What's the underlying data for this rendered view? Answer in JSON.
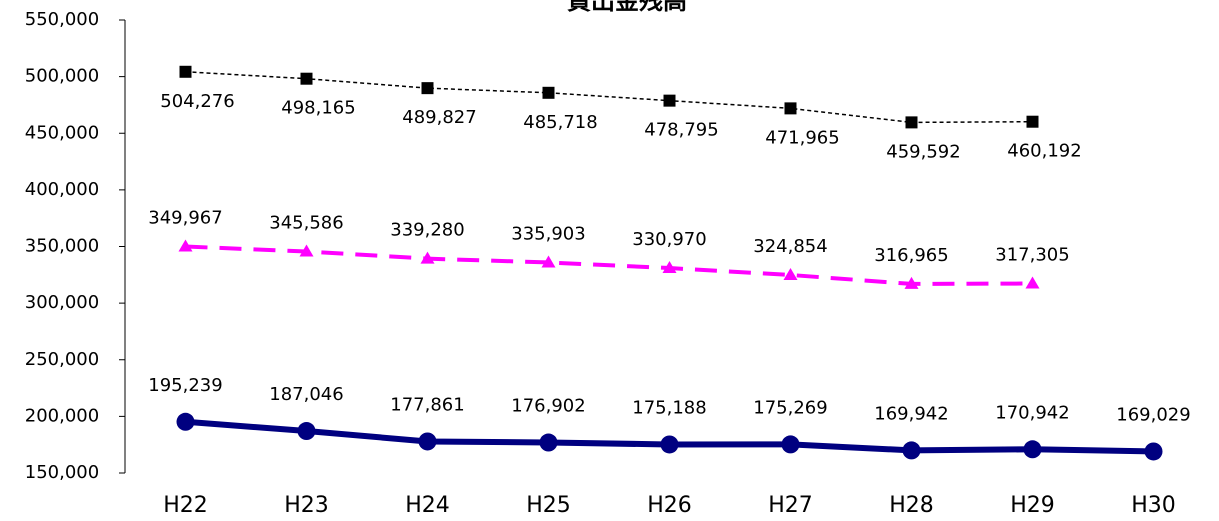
{
  "chart_data": {
    "type": "line",
    "title": "貸出金残高",
    "categories": [
      "H22",
      "H23",
      "H24",
      "H25",
      "H26",
      "H27",
      "H28",
      "H29",
      "H30"
    ],
    "series": [
      {
        "color": "#000000",
        "values": [
          504276,
          498165,
          489827,
          485718,
          478795,
          471965,
          459592,
          460192,
          null
        ],
        "value_labels": [
          "504,276",
          "498,165",
          "489,827",
          "485,718",
          "478,795",
          "471,965",
          "459,592",
          "460,192",
          null
        ]
      },
      {
        "color": "#ff00ff",
        "values": [
          349967,
          345586,
          339280,
          335903,
          330970,
          324854,
          316965,
          317305,
          null
        ],
        "value_labels": [
          "349,967",
          "345,586",
          "339,280",
          "335,903",
          "330,970",
          "324,854",
          "316,965",
          "317,305",
          null
        ]
      },
      {
        "color": "#000080",
        "values": [
          195239,
          187046,
          177861,
          176902,
          175188,
          175269,
          169942,
          170942,
          169029
        ],
        "value_labels": [
          "195,239",
          "187,046",
          "177,861",
          "176,902",
          "175,188",
          "175,269",
          "169,942",
          "170,942",
          "169,029"
        ]
      }
    ],
    "ylim": [
      150000,
      550000
    ],
    "yticks": [
      {
        "value": 150000,
        "label": "150,000"
      },
      {
        "value": 200000,
        "label": "200,000"
      },
      {
        "value": 250000,
        "label": "250,000"
      },
      {
        "value": 300000,
        "label": "300,000"
      },
      {
        "value": 350000,
        "label": "350,000"
      },
      {
        "value": 400000,
        "label": "400,000"
      },
      {
        "value": 450000,
        "label": "450,000"
      },
      {
        "value": 500000,
        "label": "500,000"
      },
      {
        "value": 550000,
        "label": "550,000"
      }
    ]
  }
}
